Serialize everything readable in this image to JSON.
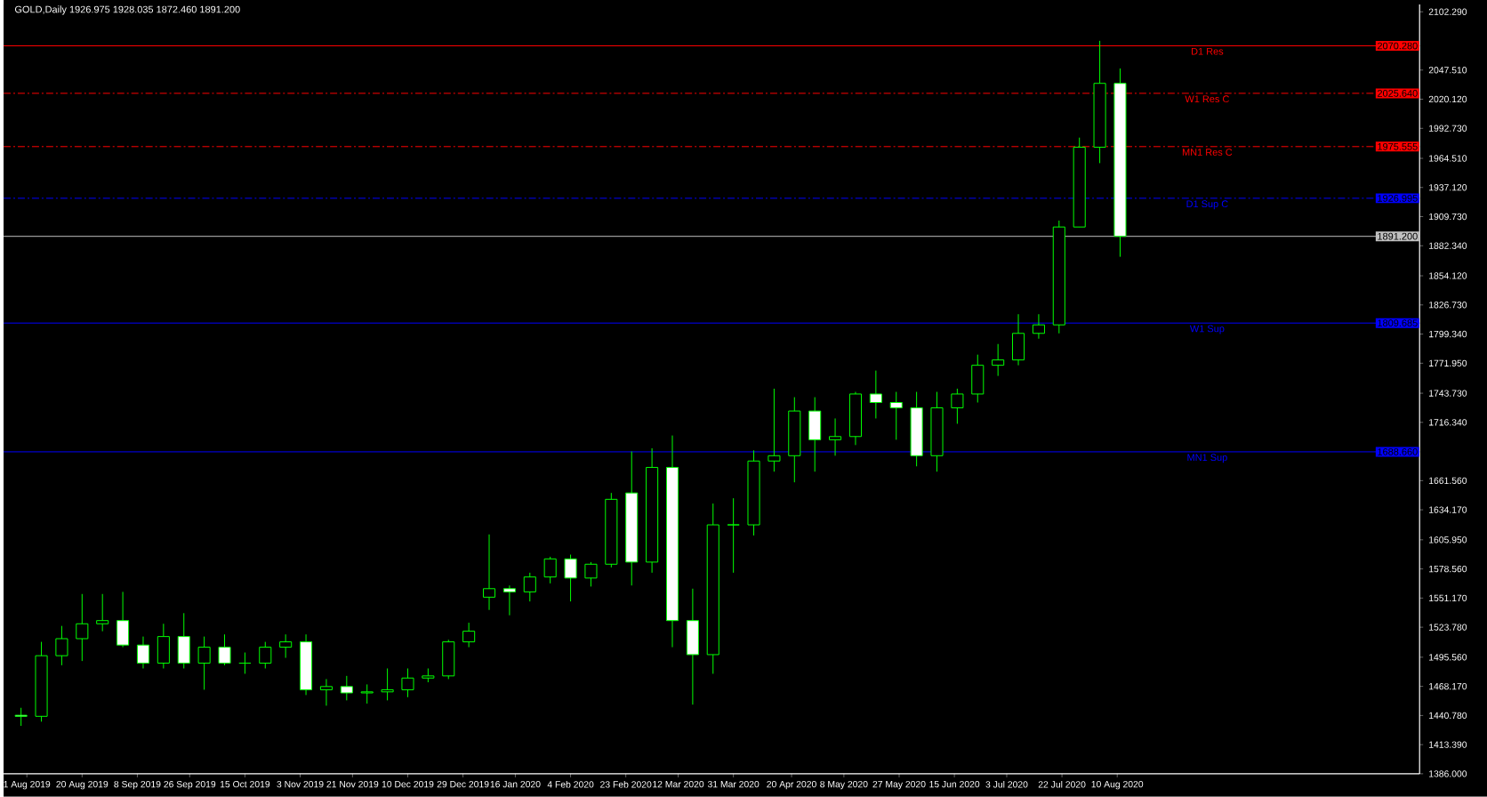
{
  "chart_data": {
    "type": "candlestick",
    "title": "GOLD,Daily  1926.975 1928.035 1872.460 1891.200",
    "color": "#00ff00",
    "x": [
      "2019-07-30",
      "2019-08-06",
      "2019-08-13",
      "2019-08-20",
      "2019-08-27",
      "2019-09-03",
      "2019-09-10",
      "2019-09-17",
      "2019-09-24",
      "2019-10-01",
      "2019-10-08",
      "2019-10-15",
      "2019-10-22",
      "2019-10-29",
      "2019-11-05",
      "2019-11-12",
      "2019-11-19",
      "2019-11-26",
      "2019-12-03",
      "2019-12-10",
      "2019-12-17",
      "2019-12-24",
      "2019-12-31",
      "2020-01-07",
      "2020-01-14",
      "2020-01-21",
      "2020-01-28",
      "2020-02-04",
      "2020-02-11",
      "2020-02-18",
      "2020-02-25",
      "2020-03-03",
      "2020-03-10",
      "2020-03-17",
      "2020-03-24",
      "2020-03-31",
      "2020-04-07",
      "2020-04-14",
      "2020-04-21",
      "2020-04-28",
      "2020-05-05",
      "2020-05-12",
      "2020-05-19",
      "2020-05-26",
      "2020-06-02",
      "2020-06-09",
      "2020-06-16",
      "2020-06-23",
      "2020-06-30",
      "2020-07-07",
      "2020-07-14",
      "2020-07-21",
      "2020-07-28",
      "2020-08-04",
      "2020-08-11"
    ],
    "ohlc": [
      [
        1441,
        1448,
        1431,
        1440
      ],
      [
        1440,
        1510,
        1435,
        1497
      ],
      [
        1497,
        1525,
        1488,
        1513
      ],
      [
        1513,
        1555,
        1492,
        1527
      ],
      [
        1527,
        1555,
        1520,
        1530
      ],
      [
        1530,
        1557,
        1505,
        1507
      ],
      [
        1507,
        1515,
        1485,
        1490
      ],
      [
        1490,
        1527,
        1485,
        1515
      ],
      [
        1515,
        1537,
        1485,
        1490
      ],
      [
        1490,
        1515,
        1465,
        1505
      ],
      [
        1505,
        1517,
        1488,
        1490
      ],
      [
        1490,
        1500,
        1480,
        1490
      ],
      [
        1490,
        1510,
        1485,
        1505
      ],
      [
        1505,
        1517,
        1495,
        1510
      ],
      [
        1510,
        1517,
        1460,
        1465
      ],
      [
        1465,
        1475,
        1450,
        1468
      ],
      [
        1468,
        1478,
        1455,
        1462
      ],
      [
        1462,
        1470,
        1452,
        1463
      ],
      [
        1463,
        1485,
        1455,
        1465
      ],
      [
        1465,
        1485,
        1458,
        1476
      ],
      [
        1476,
        1485,
        1472,
        1478
      ],
      [
        1478,
        1512,
        1475,
        1510
      ],
      [
        1510,
        1528,
        1505,
        1520
      ],
      [
        1552,
        1611,
        1540,
        1560
      ],
      [
        1560,
        1563,
        1535,
        1557
      ],
      [
        1557,
        1575,
        1548,
        1571
      ],
      [
        1571,
        1590,
        1565,
        1588
      ],
      [
        1588,
        1592,
        1548,
        1570
      ],
      [
        1570,
        1585,
        1562,
        1583
      ],
      [
        1583,
        1650,
        1580,
        1644
      ],
      [
        1650,
        1689,
        1563,
        1585
      ],
      [
        1585,
        1692,
        1575,
        1674
      ],
      [
        1674,
        1704,
        1505,
        1530
      ],
      [
        1530,
        1560,
        1451,
        1498
      ],
      [
        1498,
        1640,
        1480,
        1620
      ],
      [
        1620,
        1645,
        1575,
        1620
      ],
      [
        1620,
        1690,
        1610,
        1680
      ],
      [
        1680,
        1748,
        1670,
        1685
      ],
      [
        1685,
        1740,
        1660,
        1727
      ],
      [
        1727,
        1740,
        1670,
        1700
      ],
      [
        1700,
        1720,
        1685,
        1703
      ],
      [
        1703,
        1745,
        1695,
        1743
      ],
      [
        1743,
        1765,
        1720,
        1735
      ],
      [
        1735,
        1745,
        1700,
        1730
      ],
      [
        1730,
        1745,
        1675,
        1685
      ],
      [
        1685,
        1745,
        1670,
        1730
      ],
      [
        1730,
        1748,
        1715,
        1743
      ],
      [
        1743,
        1780,
        1735,
        1770
      ],
      [
        1770,
        1790,
        1760,
        1775
      ],
      [
        1775,
        1818,
        1770,
        1800
      ],
      [
        1800,
        1818,
        1795,
        1808
      ],
      [
        1808,
        1906,
        1800,
        1900
      ],
      [
        1900,
        1984,
        1900,
        1975
      ],
      [
        1975,
        2075,
        1960,
        2035
      ],
      [
        2035,
        2049,
        1872,
        1891.2
      ]
    ],
    "xlim": [
      "2019-07-24",
      "2020-11-22"
    ],
    "xticks": [
      {
        "value": "2019-08-01",
        "label": "1 Aug 2019"
      },
      {
        "value": "2019-08-20",
        "label": "20 Aug 2019"
      },
      {
        "value": "2019-09-08",
        "label": "8 Sep 2019"
      },
      {
        "value": "2019-09-26",
        "label": "26 Sep 2019"
      },
      {
        "value": "2019-10-15",
        "label": "15 Oct 2019"
      },
      {
        "value": "2019-11-03",
        "label": "3 Nov 2019"
      },
      {
        "value": "2019-11-21",
        "label": "21 Nov 2019"
      },
      {
        "value": "2019-12-10",
        "label": "10 Dec 2019"
      },
      {
        "value": "2019-12-29",
        "label": "29 Dec 2019"
      },
      {
        "value": "2020-01-16",
        "label": "16 Jan 2020"
      },
      {
        "value": "2020-02-04",
        "label": "4 Feb 2020"
      },
      {
        "value": "2020-02-23",
        "label": "23 Feb 2020"
      },
      {
        "value": "2020-03-12",
        "label": "12 Mar 2020"
      },
      {
        "value": "2020-03-31",
        "label": "31 Mar 2020"
      },
      {
        "value": "2020-04-20",
        "label": "20 Apr 2020"
      },
      {
        "value": "2020-05-08",
        "label": "8 May 2020"
      },
      {
        "value": "2020-05-27",
        "label": "27 May 2020"
      },
      {
        "value": "2020-06-15",
        "label": "15 Jun 2020"
      },
      {
        "value": "2020-07-03",
        "label": "3 Jul 2020"
      },
      {
        "value": "2020-07-22",
        "label": "22 Jul 2020"
      },
      {
        "value": "2020-08-10",
        "label": "10 Aug 2020"
      }
    ],
    "ylim": [
      1386,
      2109.2
    ],
    "yticks": [
      {
        "value": 2102.29,
        "label": "2102.290"
      },
      {
        "value": 2047.51,
        "label": "2047.510"
      },
      {
        "value": 2020.12,
        "label": "2020.120"
      },
      {
        "value": 1992.73,
        "label": "1992.730"
      },
      {
        "value": 1964.51,
        "label": "1964.510"
      },
      {
        "value": 1937.12,
        "label": "1937.120"
      },
      {
        "value": 1909.73,
        "label": "1909.730"
      },
      {
        "value": 1882.34,
        "label": "1882.340"
      },
      {
        "value": 1854.12,
        "label": "1854.120"
      },
      {
        "value": 1826.73,
        "label": "1826.730"
      },
      {
        "value": 1799.34,
        "label": "1799.340"
      },
      {
        "value": 1771.95,
        "label": "1771.950"
      },
      {
        "value": 1743.73,
        "label": "1743.730"
      },
      {
        "value": 1716.34,
        "label": "1716.340"
      },
      {
        "value": 1661.56,
        "label": "1661.560"
      },
      {
        "value": 1634.17,
        "label": "1634.170"
      },
      {
        "value": 1605.95,
        "label": "1605.950"
      },
      {
        "value": 1578.56,
        "label": "1578.560"
      },
      {
        "value": 1551.17,
        "label": "1551.170"
      },
      {
        "value": 1523.78,
        "label": "1523.780"
      },
      {
        "value": 1495.56,
        "label": "1495.560"
      },
      {
        "value": 1468.17,
        "label": "1468.170"
      },
      {
        "value": 1440.78,
        "label": "1440.780"
      },
      {
        "value": 1413.39,
        "label": "1413.390"
      },
      {
        "value": 1386,
        "label": "1386.000"
      }
    ],
    "ref_lines": [
      {
        "axis": "y",
        "value": 2070.28,
        "label": "D1 Res",
        "color": "#ff0000",
        "line_style": "solid"
      },
      {
        "axis": "y",
        "value": 2025.64,
        "label": "W1 Res C",
        "color": "#ff0000",
        "line_style": "dashed"
      },
      {
        "axis": "y",
        "value": 1975.555,
        "label": "MN1 Res C",
        "color": "#ff0000",
        "line_style": "dashed"
      },
      {
        "axis": "y",
        "value": 1926.995,
        "label": "D1 Sup C",
        "color": "#0000ff",
        "line_style": "dashed"
      },
      {
        "axis": "y",
        "value": 1891.2,
        "label": null,
        "color": "#c0c0c0",
        "line_style": "solid"
      },
      {
        "axis": "y",
        "value": 1809.685,
        "label": "W1 Sup",
        "color": "#0000ff",
        "line_style": "solid"
      },
      {
        "axis": "y",
        "value": 1688.66,
        "label": "MN1 Sup",
        "color": "#0000ff",
        "line_style": "solid"
      }
    ],
    "annotations": [
      {
        "text": "2070.280",
        "y": 2070.28
      },
      {
        "text": "2025.640",
        "y": 2025.64
      },
      {
        "text": "1975.555",
        "y": 1975.555
      },
      {
        "text": "1926.995",
        "y": 1926.995
      },
      {
        "text": "1891.200",
        "y": 1891.2
      },
      {
        "text": "1809.685",
        "y": 1809.685
      },
      {
        "text": "1688.660",
        "y": 1688.66
      }
    ]
  }
}
